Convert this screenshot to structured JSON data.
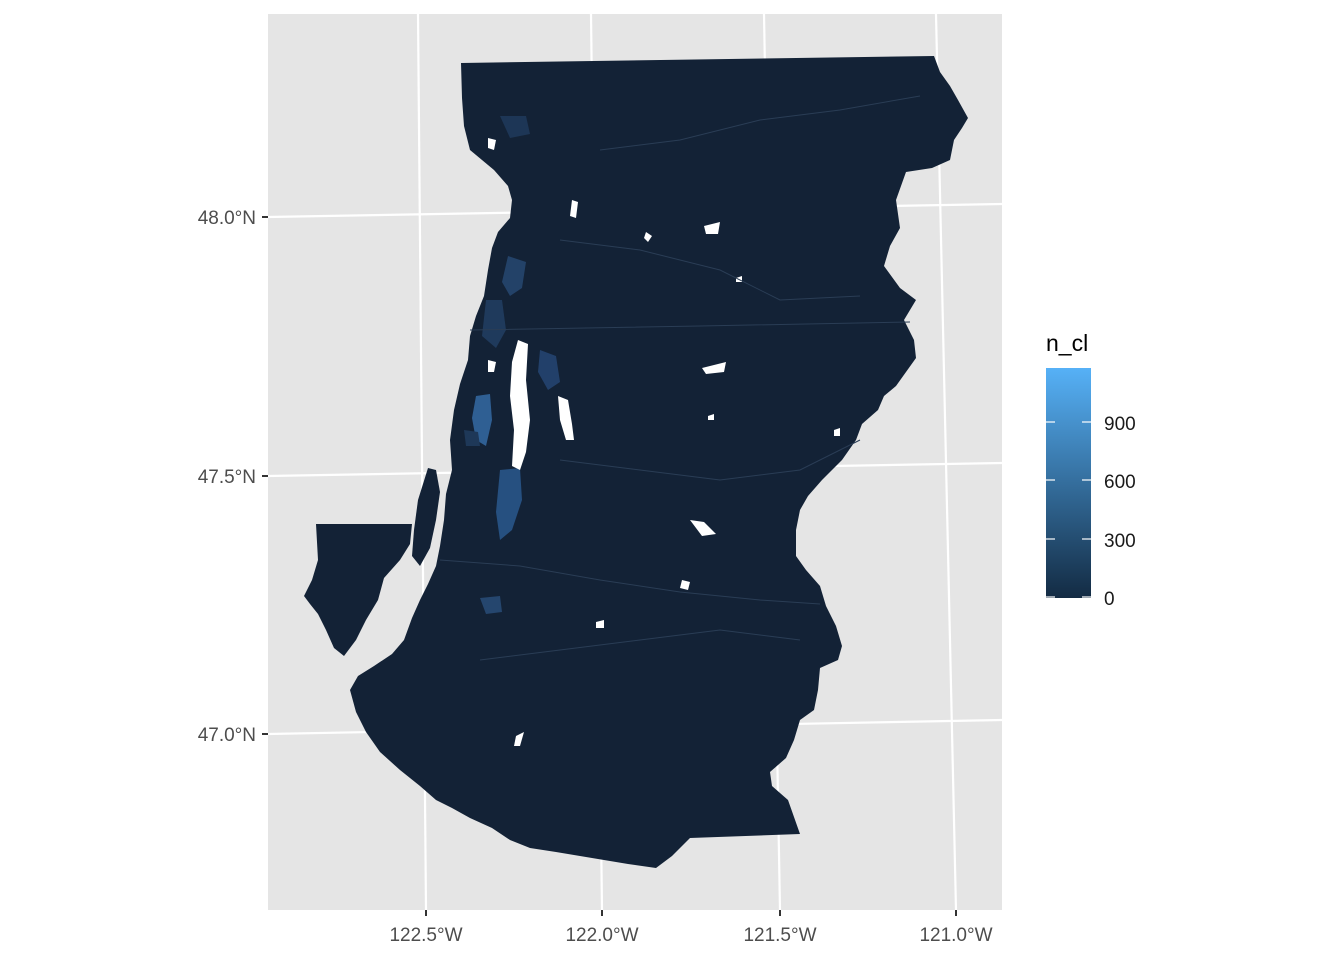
{
  "map": {
    "projection_note": "",
    "colors": {
      "panel_background": "#e5e5e5",
      "graticule": "#ffffff",
      "region_fill": "#132236",
      "water": "#ffffff",
      "scale_low": "#132B43",
      "scale_high": "#56B1F7"
    },
    "y_axis": {
      "ticks": [
        {
          "label": "48.0°N",
          "lat": 48.0
        },
        {
          "label": "47.5°N",
          "lat": 47.5
        },
        {
          "label": "47.0°N",
          "lat": 47.0
        }
      ]
    },
    "x_axis": {
      "ticks": [
        {
          "label": "122.5°W",
          "lon": -122.5
        },
        {
          "label": "122.0°W",
          "lon": -122.0
        },
        {
          "label": "121.5°W",
          "lon": -121.5
        },
        {
          "label": "121.0°W",
          "lon": -121.0
        }
      ]
    },
    "legend": {
      "title": "n_cl",
      "placement": "right",
      "breaks": [
        {
          "label": "0",
          "value": 0
        },
        {
          "label": "300",
          "value": 300
        },
        {
          "label": "600",
          "value": 600
        },
        {
          "label": "900",
          "value": 900
        }
      ],
      "range": [
        0,
        1150
      ]
    }
  }
}
